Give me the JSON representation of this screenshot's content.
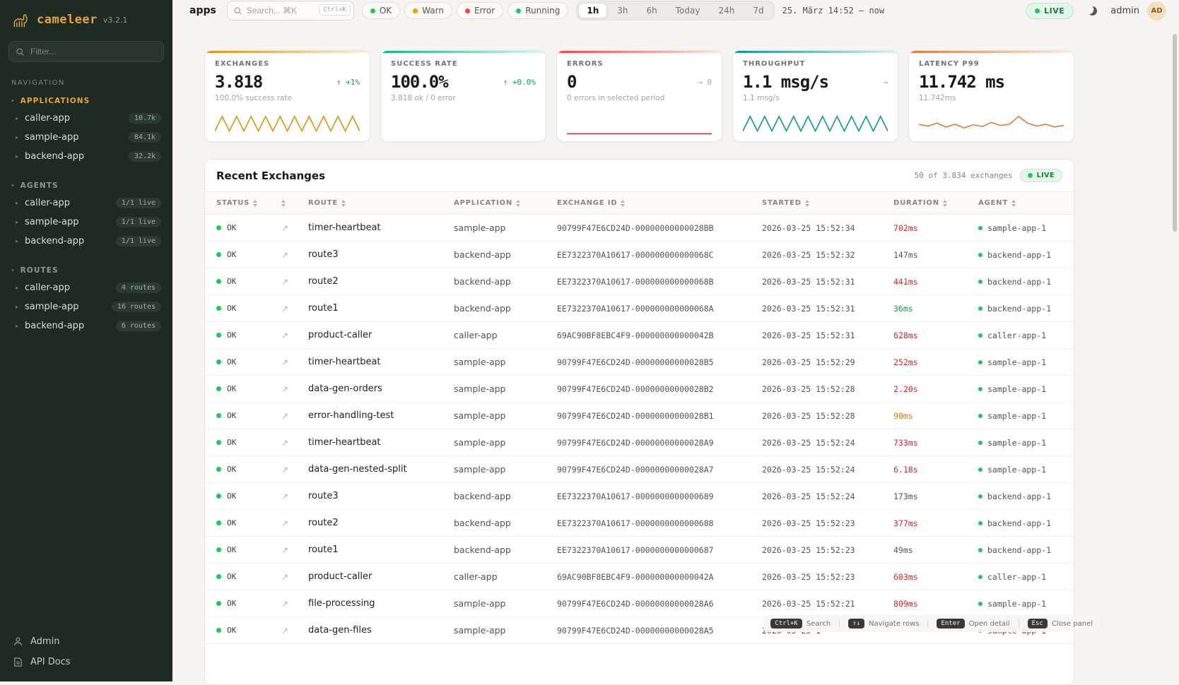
{
  "sidebar": {
    "logo": {
      "name": "cameleer",
      "version": "v3.2.1"
    },
    "filter_placeholder": "Filter...",
    "nav_label": "NAVIGATION",
    "sections": [
      {
        "label": "APPLICATIONS",
        "active": true,
        "items": [
          {
            "label": "caller-app",
            "badge": "10.7k"
          },
          {
            "label": "sample-app",
            "badge": "84.1k"
          },
          {
            "label": "backend-app",
            "badge": "32.2k"
          }
        ]
      },
      {
        "label": "AGENTS",
        "active": false,
        "items": [
          {
            "label": "caller-app",
            "badge": "1/1 live"
          },
          {
            "label": "sample-app",
            "badge": "1/1 live"
          },
          {
            "label": "backend-app",
            "badge": "1/1 live"
          }
        ]
      },
      {
        "label": "ROUTES",
        "active": false,
        "items": [
          {
            "label": "caller-app",
            "badge": "4 routes"
          },
          {
            "label": "sample-app",
            "badge": "16 routes"
          },
          {
            "label": "backend-app",
            "badge": "6 routes"
          }
        ]
      }
    ],
    "footer": [
      {
        "label": "Admin",
        "icon": "user-icon"
      },
      {
        "label": "API Docs",
        "icon": "document-icon"
      }
    ]
  },
  "topbar": {
    "page": "apps",
    "search_placeholder": "Search... ⌘K",
    "search_kbd": "Ctrl+K",
    "chips": [
      {
        "label": "OK",
        "color": "#22c55e"
      },
      {
        "label": "Warn",
        "color": "#f0a100"
      },
      {
        "label": "Error",
        "color": "#ef4444"
      },
      {
        "label": "Running",
        "color": "#22c55e"
      }
    ],
    "ranges": [
      {
        "label": "1h",
        "active": true
      },
      {
        "label": "3h",
        "active": false
      },
      {
        "label": "6h",
        "active": false
      },
      {
        "label": "Today",
        "active": false
      },
      {
        "label": "24h",
        "active": false
      },
      {
        "label": "7d",
        "active": false
      }
    ],
    "date_range": "25. März 14:52  —  now",
    "live_label": "LIVE",
    "user": "admin",
    "avatar": "AD"
  },
  "cards": [
    {
      "title": "EXCHANGES",
      "value": "3.818",
      "delta": "↑ +1%",
      "delta_color": "green",
      "sub": "100.0% success rate",
      "accent": "#e09112",
      "spark": {
        "color": "#e09112",
        "points": [
          0.8,
          0.15,
          0.8,
          0.15,
          0.8,
          0.15,
          0.8,
          0.15,
          0.8,
          0.15,
          0.8,
          0.15,
          0.8,
          0.15,
          0.8,
          0.15,
          0.8,
          0.15,
          0.8,
          0.15,
          0.8
        ]
      }
    },
    {
      "title": "SUCCESS RATE",
      "value": "100.0%",
      "delta": "↑ +0.0%",
      "delta_color": "green",
      "sub": "3.818 ok / 0 error",
      "accent": "#10b981",
      "spark": null
    },
    {
      "title": "ERRORS",
      "value": "0",
      "delta": "→ 0",
      "delta_color": "muted",
      "sub": "0 errors in selected period",
      "accent": "#ef4444",
      "spark": {
        "color": "#dc2626",
        "points": [
          0.92,
          0.92
        ]
      }
    },
    {
      "title": "THROUGHPUT",
      "value": "1.1 msg/s",
      "delta": "→",
      "delta_color": "muted",
      "sub": "1.1 msg/s",
      "accent": "#0e9494",
      "spark": {
        "color": "#0e9494",
        "points": [
          0.8,
          0.15,
          0.8,
          0.15,
          0.8,
          0.15,
          0.8,
          0.15,
          0.8,
          0.15,
          0.8,
          0.15,
          0.8,
          0.15,
          0.8,
          0.15,
          0.8,
          0.15,
          0.8,
          0.15,
          0.8
        ]
      }
    },
    {
      "title": "LATENCY P99",
      "value": "11.742 ms",
      "delta": "",
      "delta_color": "muted",
      "sub": "11.742ms",
      "accent": "#e07a3f",
      "spark": {
        "color": "#e07a3f",
        "points": [
          0.5,
          0.58,
          0.45,
          0.62,
          0.5,
          0.66,
          0.52,
          0.6,
          0.42,
          0.55,
          0.5,
          0.15,
          0.45,
          0.58,
          0.5,
          0.62,
          0.55
        ]
      }
    }
  ],
  "table": {
    "title": "Recent Exchanges",
    "summary": "50 of 3.834 exchanges",
    "live_label": "LIVE",
    "columns": [
      "STATUS",
      "",
      "ROUTE",
      "APPLICATION",
      "EXCHANGE ID",
      "STARTED",
      "DURATION",
      "AGENT"
    ],
    "rows": [
      {
        "status": "OK",
        "route": "timer-heartbeat",
        "application": "sample-app",
        "exchange_id": "90799F47E6CD24D-00000000000028BB",
        "started": "2026-03-25 15:52:34",
        "duration": "702ms",
        "duration_color": "red",
        "agent": "sample-app-1"
      },
      {
        "status": "OK",
        "route": "route3",
        "application": "backend-app",
        "exchange_id": "EE7322370A10617-000000000000068C",
        "started": "2026-03-25 15:52:32",
        "duration": "147ms",
        "duration_color": "muted",
        "agent": "backend-app-1"
      },
      {
        "status": "OK",
        "route": "route2",
        "application": "backend-app",
        "exchange_id": "EE7322370A10617-000000000000068B",
        "started": "2026-03-25 15:52:31",
        "duration": "441ms",
        "duration_color": "red",
        "agent": "backend-app-1"
      },
      {
        "status": "OK",
        "route": "route1",
        "application": "backend-app",
        "exchange_id": "EE7322370A10617-000000000000068A",
        "started": "2026-03-25 15:52:31",
        "duration": "36ms",
        "duration_color": "green",
        "agent": "backend-app-1"
      },
      {
        "status": "OK",
        "route": "product-caller",
        "application": "caller-app",
        "exchange_id": "69AC90BF8EBC4F9-000000000000042B",
        "started": "2026-03-25 15:52:31",
        "duration": "628ms",
        "duration_color": "red",
        "agent": "caller-app-1"
      },
      {
        "status": "OK",
        "route": "timer-heartbeat",
        "application": "sample-app",
        "exchange_id": "90799F47E6CD24D-00000000000028B5",
        "started": "2026-03-25 15:52:29",
        "duration": "252ms",
        "duration_color": "red",
        "agent": "sample-app-1"
      },
      {
        "status": "OK",
        "route": "data-gen-orders",
        "application": "sample-app",
        "exchange_id": "90799F47E6CD24D-00000000000028B2",
        "started": "2026-03-25 15:52:28",
        "duration": "2.20s",
        "duration_color": "red",
        "agent": "sample-app-1"
      },
      {
        "status": "OK",
        "route": "error-handling-test",
        "application": "sample-app",
        "exchange_id": "90799F47E6CD24D-00000000000028B1",
        "started": "2026-03-25 15:52:28",
        "duration": "90ms",
        "duration_color": "amber",
        "agent": "sample-app-1"
      },
      {
        "status": "OK",
        "route": "timer-heartbeat",
        "application": "sample-app",
        "exchange_id": "90799F47E6CD24D-00000000000028A9",
        "started": "2026-03-25 15:52:24",
        "duration": "733ms",
        "duration_color": "red",
        "agent": "sample-app-1"
      },
      {
        "status": "OK",
        "route": "data-gen-nested-split",
        "application": "sample-app",
        "exchange_id": "90799F47E6CD24D-00000000000028A7",
        "started": "2026-03-25 15:52:24",
        "duration": "6.18s",
        "duration_color": "red",
        "agent": "sample-app-1"
      },
      {
        "status": "OK",
        "route": "route3",
        "application": "backend-app",
        "exchange_id": "EE7322370A10617-0000000000000689",
        "started": "2026-03-25 15:52:24",
        "duration": "173ms",
        "duration_color": "muted",
        "agent": "backend-app-1"
      },
      {
        "status": "OK",
        "route": "route2",
        "application": "backend-app",
        "exchange_id": "EE7322370A10617-0000000000000688",
        "started": "2026-03-25 15:52:23",
        "duration": "377ms",
        "duration_color": "red",
        "agent": "backend-app-1"
      },
      {
        "status": "OK",
        "route": "route1",
        "application": "backend-app",
        "exchange_id": "EE7322370A10617-0000000000000687",
        "started": "2026-03-25 15:52:23",
        "duration": "49ms",
        "duration_color": "muted",
        "agent": "backend-app-1"
      },
      {
        "status": "OK",
        "route": "product-caller",
        "application": "caller-app",
        "exchange_id": "69AC90BF8EBC4F9-000000000000042A",
        "started": "2026-03-25 15:52:23",
        "duration": "603ms",
        "duration_color": "red",
        "agent": "caller-app-1"
      },
      {
        "status": "OK",
        "route": "file-processing",
        "application": "sample-app",
        "exchange_id": "90799F47E6CD24D-00000000000028A6",
        "started": "2026-03-25 15:52:21",
        "duration": "809ms",
        "duration_color": "red",
        "agent": "sample-app-1"
      },
      {
        "status": "OK",
        "route": "data-gen-files",
        "application": "sample-app",
        "exchange_id": "90799F47E6CD24D-00000000000028A5",
        "started": "2026-03-25 1",
        "duration": "",
        "duration_color": "muted",
        "agent": "sample-app-1"
      }
    ]
  },
  "shortcuts": [
    {
      "key": "Ctrl+K",
      "label": "Search"
    },
    {
      "key": "↑↓",
      "label": "Navigate rows"
    },
    {
      "key": "Enter",
      "label": "Open detail"
    },
    {
      "key": "Esc",
      "label": "Close panel"
    }
  ],
  "icons": {
    "logo": "camel-icon",
    "search": "search-icon",
    "dark_mode": "moon-icon",
    "expand_row": "arrow-up-right-icon",
    "sort": "sort-arrows-icon",
    "admin": "user-icon",
    "api_docs": "document-icon"
  }
}
